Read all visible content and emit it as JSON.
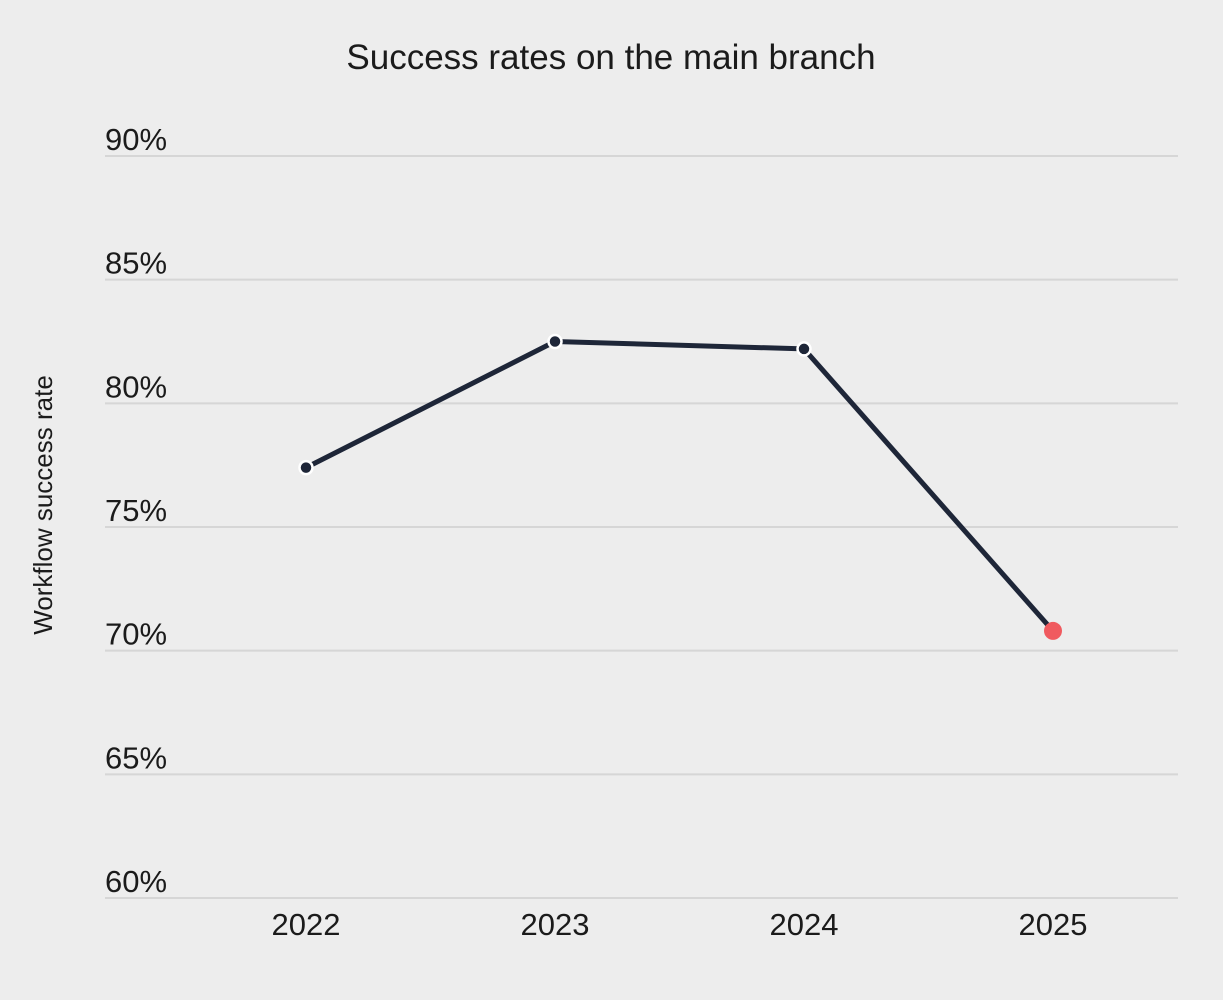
{
  "chart_data": {
    "type": "line",
    "title": "Success rates on the main branch",
    "xlabel": "",
    "ylabel": "Workflow success rate",
    "categories": [
      "2022",
      "2023",
      "2024",
      "2025"
    ],
    "series": [
      {
        "values": [
          77.4,
          82.5,
          82.2,
          70.8
        ],
        "color": "#1e2638",
        "point_colors": [
          "#1e2638",
          "#1e2638",
          "#1e2638",
          "#f05a5f"
        ]
      }
    ],
    "ylim": [
      60,
      90
    ],
    "y_ticks": [
      {
        "value": 90,
        "label": "90%"
      },
      {
        "value": 85,
        "label": "85%"
      },
      {
        "value": 80,
        "label": "80%"
      },
      {
        "value": 75,
        "label": "75%"
      },
      {
        "value": 70,
        "label": "70%"
      },
      {
        "value": 65,
        "label": "65%"
      },
      {
        "value": 60,
        "label": "60%"
      }
    ],
    "grid": true,
    "legend": "none",
    "colors": {
      "background": "#ededed",
      "line": "#1e2638",
      "highlight": "#f05a5f",
      "grid": "#d6d6d6"
    }
  }
}
